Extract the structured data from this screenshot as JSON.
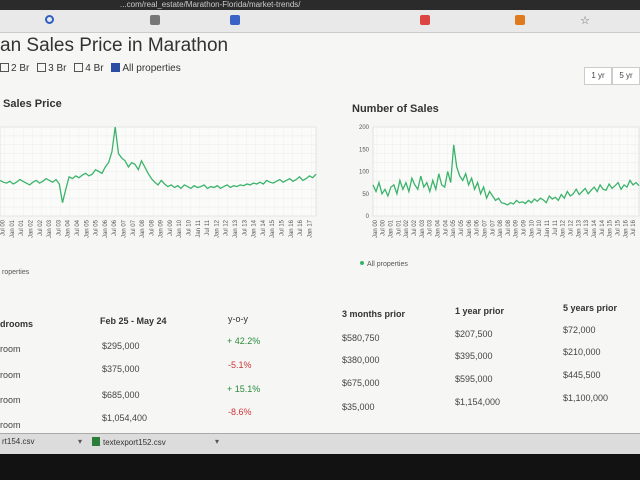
{
  "browser": {
    "url": "...com/real_estate/Marathon-Florida/market-trends/"
  },
  "page": {
    "title": "an Sales Price in Marathon",
    "filters": [
      {
        "label": "2 Br",
        "checked": false
      },
      {
        "label": "3 Br",
        "checked": false
      },
      {
        "label": "4 Br",
        "checked": false
      },
      {
        "label": "All properties",
        "checked": true
      }
    ],
    "range_buttons": [
      "1 yr",
      "5 yr"
    ]
  },
  "charts": {
    "sales_price": {
      "title": "Sales Price",
      "legend": "roperties"
    },
    "num_sales": {
      "title": "Number of Sales",
      "legend": "All properties"
    }
  },
  "chart_data": [
    {
      "type": "line",
      "title": "Sales Price",
      "x_ticks": [
        "Jul 00",
        "Jan 01",
        "Jul 01",
        "Jan 02",
        "Jul 02",
        "Jan 03",
        "Jul 03",
        "Jan 04",
        "Jul 04",
        "Jan 05",
        "Jul 05",
        "Jan 06",
        "Jul 06",
        "Jan 07",
        "Jul 07",
        "Jan 08",
        "Jul 08",
        "Jan 09",
        "Jul 09",
        "Jan 10",
        "Jul 10",
        "Jan 11",
        "Jul 11",
        "Jan 12",
        "Jul 12",
        "Jan 13",
        "Jul 13",
        "Jan 14",
        "Jul 14",
        "Jan 15",
        "Jul 15",
        "Jan 16",
        "Jul 16",
        "Jan 17"
      ],
      "series": [
        {
          "color": "#3bb36a",
          "values": [
            0.4,
            0.38,
            0.37,
            0.39,
            0.36,
            0.38,
            0.41,
            0.39,
            0.37,
            0.35,
            0.38,
            0.4,
            0.37,
            0.39,
            0.42,
            0.4,
            0.38,
            0.41,
            0.36,
            0.15,
            0.3,
            0.44,
            0.42,
            0.45,
            0.43,
            0.46,
            0.48,
            0.45,
            0.47,
            0.52,
            0.5,
            0.48,
            0.55,
            0.6,
            0.72,
            1.0,
            0.7,
            0.65,
            0.62,
            0.55,
            0.6,
            0.58,
            0.52,
            0.62,
            0.55,
            0.48,
            0.42,
            0.38,
            0.35,
            0.4,
            0.36,
            0.33,
            0.35,
            0.32,
            0.34,
            0.31,
            0.35,
            0.33,
            0.31,
            0.34,
            0.32,
            0.33,
            0.35,
            0.31,
            0.33,
            0.32,
            0.34,
            0.31,
            0.33,
            0.35,
            0.32,
            0.34,
            0.33,
            0.35,
            0.34,
            0.36,
            0.35,
            0.37,
            0.36,
            0.38,
            0.36,
            0.4,
            0.38,
            0.37,
            0.39,
            0.41,
            0.38,
            0.4,
            0.42,
            0.39,
            0.41,
            0.44,
            0.4,
            0.42,
            0.45,
            0.43,
            0.47
          ]
        }
      ]
    },
    {
      "type": "line",
      "title": "Number of Sales",
      "ylim": [
        0,
        200
      ],
      "y_ticks": [
        0,
        50,
        100,
        150,
        200
      ],
      "x_ticks": [
        "Jan 00",
        "Jul 00",
        "Jan 01",
        "Jul 01",
        "Jan 02",
        "Jul 02",
        "Jan 03",
        "Jul 03",
        "Jan 04",
        "Jul 04",
        "Jan 05",
        "Jul 05",
        "Jan 06",
        "Jul 06",
        "Jan 07",
        "Jul 07",
        "Jan 08",
        "Jul 08",
        "Jan 09",
        "Jul 09",
        "Jan 10",
        "Jul 10",
        "Jan 11",
        "Jul 11",
        "Jan 12",
        "Jul 12",
        "Jan 13",
        "Jul 13",
        "Jan 14",
        "Jul 14",
        "Jan 15",
        "Jul 15",
        "Jan 16",
        "Jul 16"
      ],
      "series": [
        {
          "name": "All properties",
          "color": "#3bb36a",
          "values": [
            70,
            55,
            75,
            50,
            60,
            45,
            65,
            70,
            50,
            80,
            60,
            75,
            55,
            85,
            70,
            60,
            90,
            65,
            75,
            55,
            80,
            60,
            95,
            70,
            65,
            100,
            75,
            160,
            110,
            90,
            80,
            95,
            70,
            85,
            60,
            75,
            50,
            65,
            40,
            55,
            45,
            35,
            40,
            30,
            28,
            25,
            30,
            27,
            35,
            30,
            32,
            28,
            35,
            30,
            38,
            33,
            40,
            36,
            30,
            45,
            38,
            42,
            35,
            48,
            40,
            55,
            45,
            50,
            60,
            48,
            55,
            62,
            50,
            58,
            65,
            55,
            70,
            60,
            58,
            72,
            62,
            68,
            75,
            60,
            70,
            65,
            80,
            70,
            75,
            68
          ]
        }
      ]
    }
  ],
  "table": {
    "headers": [
      "drooms",
      "Feb 25 - May 24",
      "y-o-y",
      "3 months prior",
      "1 year prior",
      "5 years prior"
    ],
    "rows": [
      {
        "label": "room",
        "current": "$295,000",
        "yoy": "+ 42.2%",
        "m3": "$580,750",
        "y1": "$207,500",
        "y5": "$72,000",
        "dir": "pos"
      },
      {
        "label": "room",
        "current": "$375,000",
        "yoy": "-5.1%",
        "m3": "$380,000",
        "y1": "$395,000",
        "y5": "$210,000",
        "dir": "neg"
      },
      {
        "label": "room",
        "current": "$685,000",
        "yoy": "+ 15.1%",
        "m3": "$675,000",
        "y1": "$595,000",
        "y5": "$445,500",
        "dir": "pos"
      },
      {
        "label": "room",
        "current": "$1,054,400",
        "yoy": "-8.6%",
        "m3": "$35,000",
        "y1": "$1,154,000",
        "y5": "$1,100,000",
        "dir": "neg"
      }
    ]
  },
  "downloads": [
    "rt154.csv",
    "textexport152.csv"
  ]
}
